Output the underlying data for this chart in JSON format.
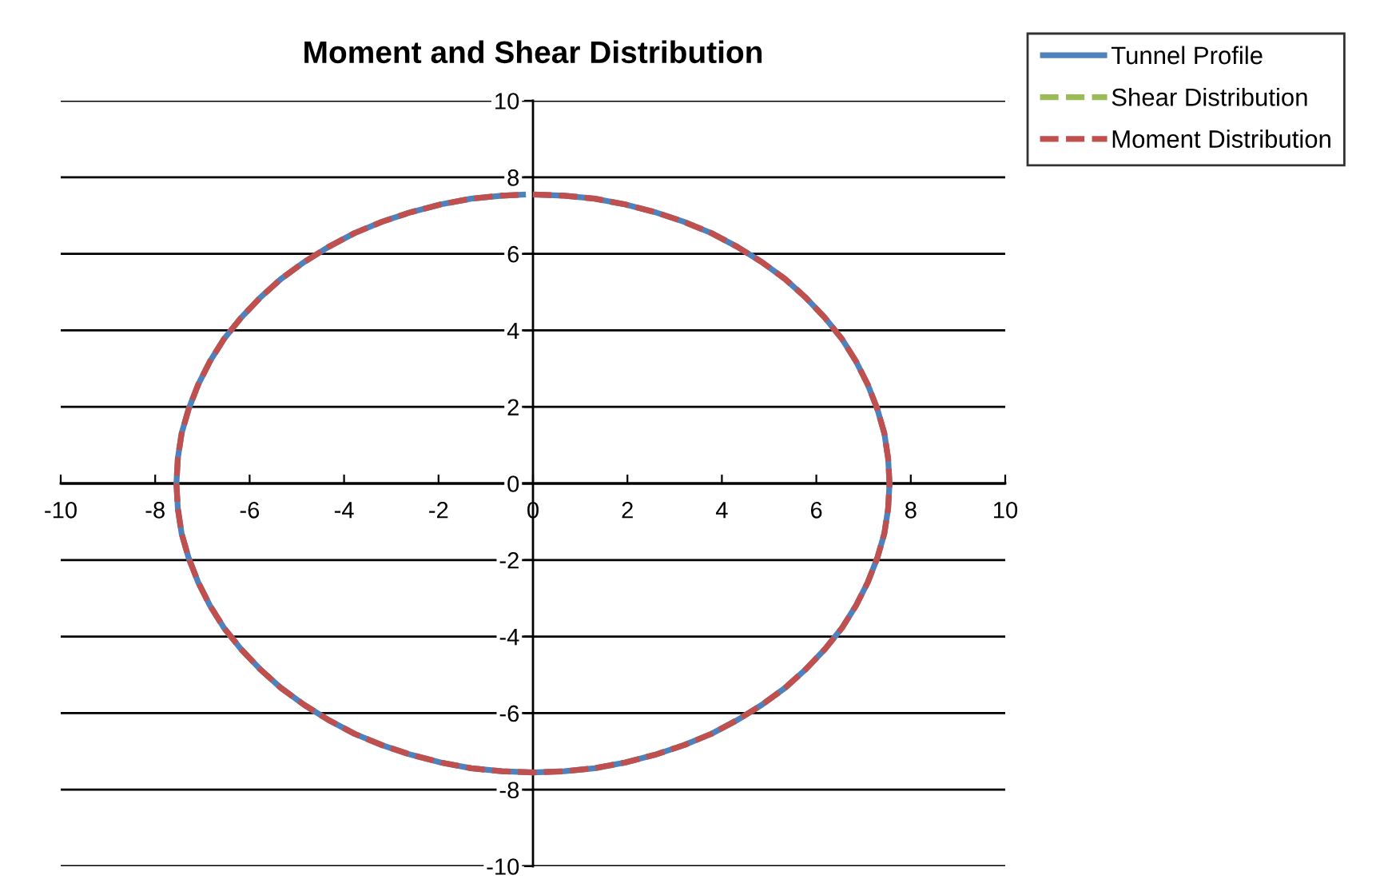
{
  "chart_data": {
    "type": "line",
    "title": "Moment and Shear Distribution",
    "x": [
      0,
      0.66,
      1.31,
      1.95,
      2.58,
      3.19,
      3.78,
      4.33,
      4.85,
      5.34,
      5.78,
      6.18,
      6.54,
      6.84,
      7.09,
      7.29,
      7.44,
      7.52,
      7.55,
      7.52,
      7.44,
      7.29,
      7.09,
      6.84,
      6.54,
      6.18,
      5.78,
      5.34,
      4.85,
      4.33,
      3.78,
      3.19,
      2.58,
      1.95,
      1.31,
      0.66,
      0,
      -0.66,
      -1.31,
      -1.95,
      -2.58,
      -3.19,
      -3.78,
      -4.33,
      -4.85,
      -5.34,
      -5.78,
      -6.18,
      -6.54,
      -6.84,
      -7.09,
      -7.29,
      -7.44,
      -7.52,
      -7.55,
      -7.52,
      -7.44,
      -7.29,
      -7.09,
      -6.84,
      -6.54,
      -6.18,
      -5.78,
      -5.34,
      -4.85,
      -4.33,
      -3.78,
      -3.19,
      -2.58,
      -1.95,
      -1.31,
      -0.66,
      -0.15
    ],
    "series": [
      {
        "name": "Tunnel Profile",
        "color": "#4f81bd",
        "line_style": "solid",
        "values": [
          7.55,
          7.52,
          7.44,
          7.29,
          7.09,
          6.84,
          6.54,
          6.18,
          5.78,
          5.34,
          4.85,
          4.33,
          3.78,
          3.19,
          2.58,
          1.95,
          1.31,
          0.66,
          0,
          -0.66,
          -1.31,
          -1.95,
          -2.58,
          -3.19,
          -3.78,
          -4.33,
          -4.85,
          -5.34,
          -5.78,
          -6.18,
          -6.54,
          -6.84,
          -7.09,
          -7.29,
          -7.44,
          -7.52,
          -7.55,
          -7.52,
          -7.44,
          -7.29,
          -7.09,
          -6.84,
          -6.54,
          -6.18,
          -5.78,
          -5.34,
          -4.85,
          -4.33,
          -3.78,
          -3.19,
          -2.58,
          -1.95,
          -1.31,
          -0.66,
          0,
          0.66,
          1.31,
          1.95,
          2.58,
          3.19,
          3.78,
          4.33,
          4.85,
          5.34,
          5.78,
          6.18,
          6.54,
          6.84,
          7.09,
          7.29,
          7.44,
          7.52,
          7.55
        ]
      },
      {
        "name": "Shear Distribution",
        "color": "#9bbb59",
        "line_style": "dashed",
        "values": [
          null,
          null,
          null,
          null,
          null,
          null,
          null,
          null,
          null,
          null,
          null,
          null,
          null,
          null,
          null,
          null,
          null,
          null,
          null,
          null,
          null,
          null,
          null,
          null,
          null,
          null,
          null,
          null,
          null,
          null,
          null,
          null,
          null,
          null,
          null,
          null,
          null,
          null,
          null,
          null,
          null,
          null,
          null,
          null,
          null,
          null,
          null,
          null,
          null,
          null,
          null,
          null,
          null,
          null,
          null,
          null,
          null,
          null,
          null,
          null,
          null,
          null,
          null,
          null,
          null,
          null,
          null,
          null,
          null,
          null,
          null,
          null,
          null
        ]
      },
      {
        "name": "Moment Distribution",
        "color": "#c0504d",
        "line_style": "dashed",
        "values": [
          7.55,
          7.52,
          7.44,
          7.29,
          7.09,
          6.84,
          6.54,
          6.18,
          5.78,
          5.34,
          4.85,
          4.33,
          3.78,
          3.19,
          2.58,
          1.95,
          1.31,
          0.66,
          0,
          -0.66,
          -1.31,
          -1.95,
          -2.58,
          -3.19,
          -3.78,
          -4.33,
          -4.85,
          -5.34,
          -5.78,
          -6.18,
          -6.54,
          -6.84,
          -7.09,
          -7.29,
          -7.44,
          -7.52,
          -7.55,
          -7.52,
          -7.44,
          -7.29,
          -7.09,
          -6.84,
          -6.54,
          -6.18,
          -5.78,
          -5.34,
          -4.85,
          -4.33,
          -3.78,
          -3.19,
          -2.58,
          -1.95,
          -1.31,
          -0.66,
          0,
          0.66,
          1.31,
          1.95,
          2.58,
          3.19,
          3.78,
          4.33,
          4.85,
          5.34,
          5.78,
          6.18,
          6.54,
          6.84,
          7.09,
          7.29,
          7.44,
          7.52,
          7.55
        ]
      }
    ],
    "xlim": [
      -10,
      10
    ],
    "ylim": [
      -10,
      10
    ],
    "xticks": [
      -10,
      -8,
      -6,
      -4,
      -2,
      0,
      2,
      4,
      6,
      8,
      10
    ],
    "yticks": [
      -10,
      -8,
      -6,
      -4,
      -2,
      0,
      2,
      4,
      6,
      8,
      10
    ],
    "grid": "y",
    "legend": "top right"
  }
}
